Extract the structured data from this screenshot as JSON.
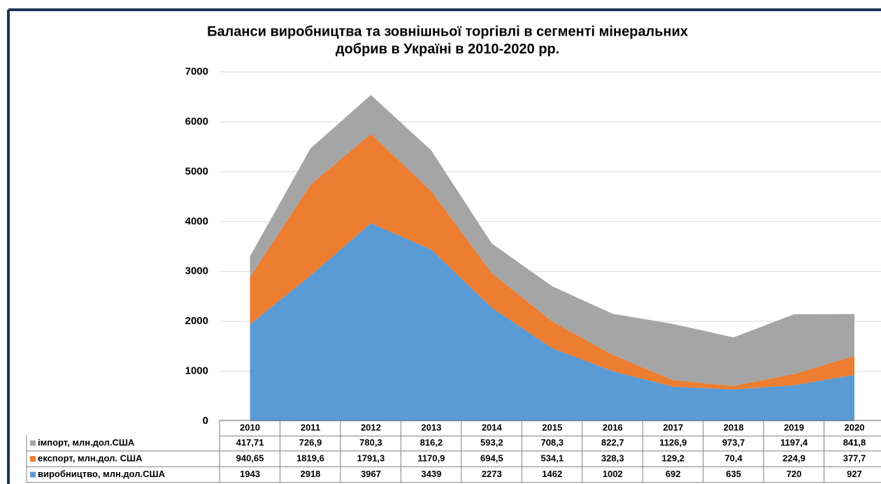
{
  "chart_data": {
    "type": "stacked_area",
    "title": [
      "Баланси виробництва та зовнішньої торгівлі  в сегменті мінеральних",
      "добрив в Україні в 2010-2020 рр."
    ],
    "categories": [
      "2010",
      "2011",
      "2012",
      "2013",
      "2014",
      "2015",
      "2016",
      "2017",
      "2018",
      "2019",
      "2020"
    ],
    "series": [
      {
        "name": "імпорт, млн.дол.США",
        "color": "#a5a5a5",
        "values": [
          417.71,
          726.9,
          780.3,
          816.2,
          593.2,
          708.3,
          822.7,
          1126.9,
          973.7,
          1197.4,
          841.8
        ],
        "value_labels": [
          "417,71",
          "726,9",
          "780,3",
          "816,2",
          "593,2",
          "708,3",
          "822,7",
          "1126,9",
          "973,7",
          "1197,4",
          "841,8"
        ]
      },
      {
        "name": "експорт, млн.дол. США",
        "color": "#ed7d31",
        "values": [
          940.65,
          1819.6,
          1791.3,
          1170.9,
          694.5,
          534.1,
          328.3,
          129.2,
          70.4,
          224.9,
          377.7
        ],
        "value_labels": [
          "940,65",
          "1819,6",
          "1791,3",
          "1170,9",
          "694,5",
          "534,1",
          "328,3",
          "129,2",
          "70,4",
          "224,9",
          "377,7"
        ]
      },
      {
        "name": "виробництво, млн.дол.США",
        "color": "#5b9bd5",
        "values": [
          1943,
          2918,
          3967,
          3439,
          2273,
          1462,
          1002,
          692,
          635,
          720,
          927
        ]
      }
    ],
    "ylim": [
      0,
      7000
    ],
    "yticks": [
      0,
      1000,
      2000,
      3000,
      4000,
      5000,
      6000,
      7000
    ],
    "grid": true
  }
}
